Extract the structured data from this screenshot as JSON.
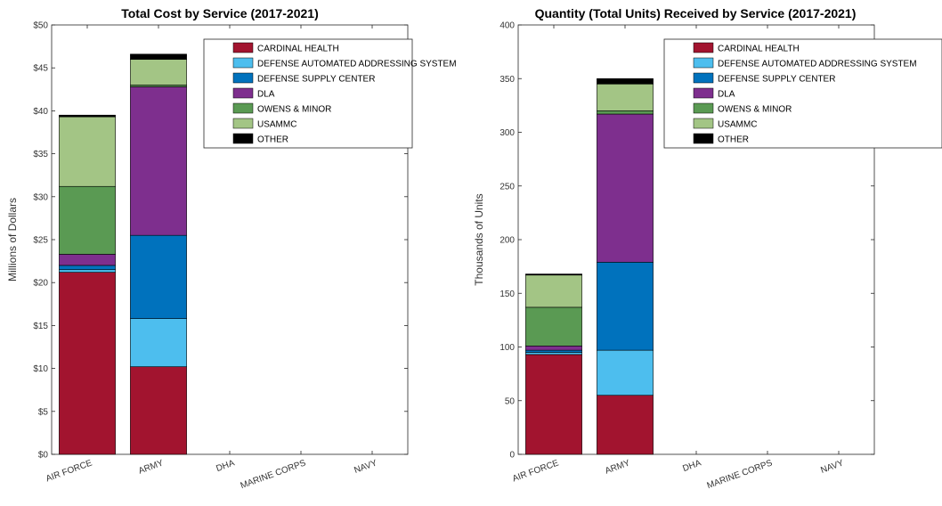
{
  "series_meta": [
    {
      "name": "CARDINAL HEALTH",
      "color": "#A2142F"
    },
    {
      "name": "DEFENSE AUTOMATED ADDRESSING SYSTEM",
      "color": "#4DBEEE"
    },
    {
      "name": "DEFENSE SUPPLY CENTER",
      "color": "#0072BD"
    },
    {
      "name": "DLA",
      "color": "#7E2F8E"
    },
    {
      "name": "OWENS & MINOR",
      "color": "#5A9A53"
    },
    {
      "name": "USAMMC",
      "color": "#A3C585"
    },
    {
      "name": "OTHER",
      "color": "#000000"
    }
  ],
  "chart_data": [
    {
      "type": "bar",
      "stacked": true,
      "title": "Total Cost by Service (2017-2021)",
      "xlabel": "",
      "ylabel": "Millions of Dollars",
      "ylim": [
        0,
        50
      ],
      "yticks": [
        0,
        5,
        10,
        15,
        20,
        25,
        30,
        35,
        40,
        45,
        50
      ],
      "ytick_labels": [
        "$0",
        "$5",
        "$10",
        "$15",
        "$20",
        "$25",
        "$30",
        "$35",
        "$40",
        "$45",
        "$50"
      ],
      "categories": [
        "AIR FORCE",
        "ARMY",
        "DHA",
        "MARINE CORPS",
        "NAVY"
      ],
      "legend_position": "top-right",
      "grid": false,
      "series": [
        {
          "name": "CARDINAL HEALTH",
          "values": [
            21.2,
            10.2,
            0,
            0,
            0
          ]
        },
        {
          "name": "DEFENSE AUTOMATED ADDRESSING SYSTEM",
          "values": [
            0.3,
            5.6,
            0,
            0,
            0
          ]
        },
        {
          "name": "DEFENSE SUPPLY CENTER",
          "values": [
            0.5,
            9.7,
            0,
            0,
            0
          ]
        },
        {
          "name": "DLA",
          "values": [
            1.3,
            17.3,
            0,
            0,
            0
          ]
        },
        {
          "name": "OWENS & MINOR",
          "values": [
            7.9,
            0.2,
            0,
            0,
            0
          ]
        },
        {
          "name": "USAMMC",
          "values": [
            8.1,
            3.0,
            0,
            0,
            0
          ]
        },
        {
          "name": "OTHER",
          "values": [
            0.2,
            0.6,
            0,
            0,
            0
          ]
        }
      ]
    },
    {
      "type": "bar",
      "stacked": true,
      "title": "Quantity (Total Units) Received by Service (2017-2021)",
      "xlabel": "",
      "ylabel": "Thousands of Units",
      "ylim": [
        0,
        400
      ],
      "yticks": [
        0,
        50,
        100,
        150,
        200,
        250,
        300,
        350,
        400
      ],
      "ytick_labels": [
        "0",
        "50",
        "100",
        "150",
        "200",
        "250",
        "300",
        "350",
        "400"
      ],
      "categories": [
        "AIR FORCE",
        "ARMY",
        "DHA",
        "MARINE CORPS",
        "NAVY"
      ],
      "legend_position": "top-right",
      "grid": false,
      "series": [
        {
          "name": "CARDINAL HEALTH",
          "values": [
            93,
            55,
            0,
            0,
            0
          ]
        },
        {
          "name": "DEFENSE AUTOMATED ADDRESSING SYSTEM",
          "values": [
            2,
            42,
            0,
            0,
            0
          ]
        },
        {
          "name": "DEFENSE SUPPLY CENTER",
          "values": [
            2,
            82,
            0,
            0,
            0
          ]
        },
        {
          "name": "DLA",
          "values": [
            4,
            138,
            0,
            0,
            0
          ]
        },
        {
          "name": "OWENS & MINOR",
          "values": [
            36,
            3,
            0,
            0,
            0
          ]
        },
        {
          "name": "USAMMC",
          "values": [
            30,
            25,
            0,
            0,
            0
          ]
        },
        {
          "name": "OTHER",
          "values": [
            1,
            5,
            0,
            0,
            0
          ]
        }
      ]
    }
  ]
}
